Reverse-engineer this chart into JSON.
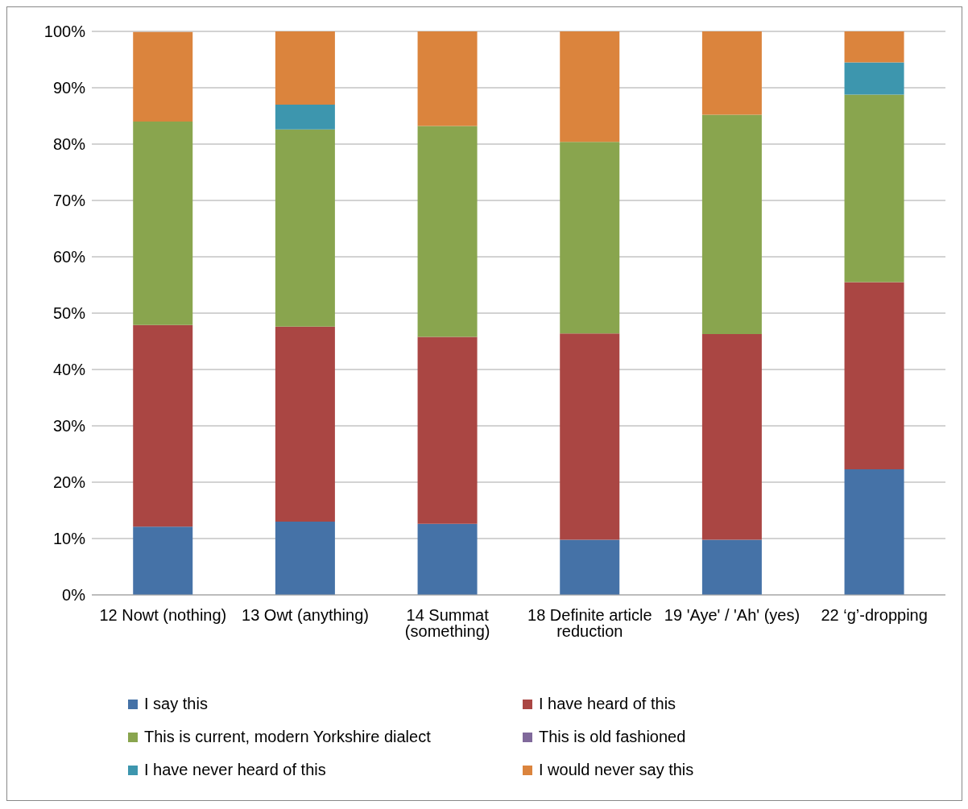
{
  "chart_data": {
    "type": "bar",
    "stacked": true,
    "categories": [
      "12 Nowt (nothing)",
      "13 Owt (anything)",
      "14 Summat (something)",
      "18 Definite article reduction",
      "19 'Aye' / 'Ah' (yes)",
      "22 ‘g’-dropping"
    ],
    "series": [
      {
        "name": "I say this",
        "color": "#4572a7",
        "values": [
          12.1,
          13.0,
          12.6,
          9.8,
          9.8,
          22.3
        ]
      },
      {
        "name": "I have heard of this",
        "color": "#aa4643",
        "values": [
          35.8,
          34.6,
          33.2,
          36.6,
          36.5,
          33.2
        ]
      },
      {
        "name": "This is current, modern Yorkshire dialect",
        "color": "#89a54e",
        "values": [
          36.1,
          35.0,
          37.4,
          34.0,
          38.9,
          33.3
        ]
      },
      {
        "name": "This is old fashioned",
        "color": "#80699b",
        "values": [
          0,
          0,
          0,
          0,
          0,
          0
        ]
      },
      {
        "name": "I have never heard of this",
        "color": "#3d96ae",
        "values": [
          0,
          4.4,
          0,
          0,
          0,
          5.7
        ]
      },
      {
        "name": "I would never say this",
        "color": "#db843d",
        "values": [
          15.9,
          13.0,
          16.8,
          19.6,
          14.8,
          5.5
        ]
      }
    ],
    "ylim": [
      0,
      100
    ],
    "yticks": [
      {
        "value": 0,
        "label": "0%"
      },
      {
        "value": 10,
        "label": "10%"
      },
      {
        "value": 20,
        "label": "20%"
      },
      {
        "value": 30,
        "label": "30%"
      },
      {
        "value": 40,
        "label": "40%"
      },
      {
        "value": 50,
        "label": "50%"
      },
      {
        "value": 60,
        "label": "60%"
      },
      {
        "value": 70,
        "label": "70%"
      },
      {
        "value": 80,
        "label": "80%"
      },
      {
        "value": 90,
        "label": "90%"
      },
      {
        "value": 100,
        "label": "100%"
      }
    ],
    "grid": "y",
    "legend": "bottom"
  }
}
